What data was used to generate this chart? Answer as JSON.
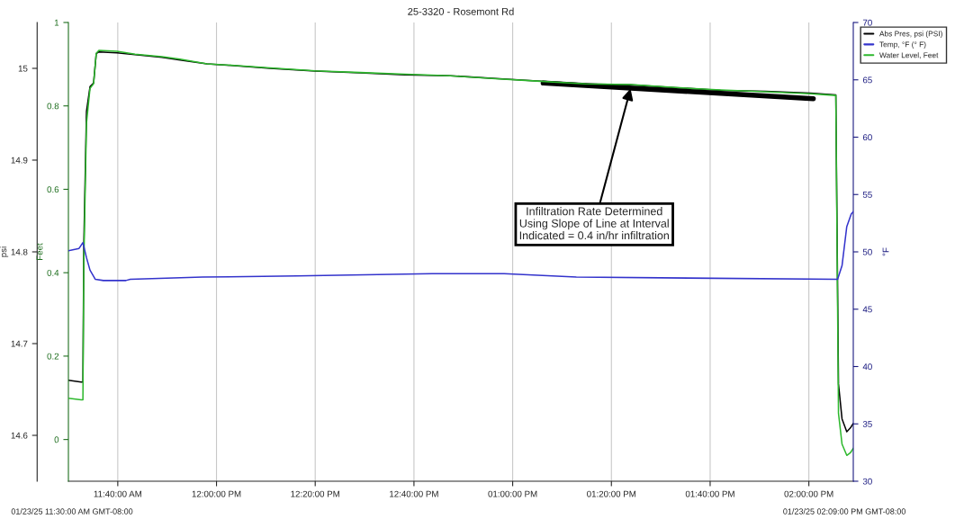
{
  "chart_data": {
    "type": "line",
    "title": "25-3320 - Rosemont Rd",
    "ylabel": "psi",
    "y2label": "Feet",
    "y3label": "°F",
    "xlim": [
      11.5,
      14.15
    ],
    "xticks": [
      {
        "value": 11.6667,
        "label": "11:40:00 AM"
      },
      {
        "value": 12,
        "label": "12:00:00 PM"
      },
      {
        "value": 12.3333,
        "label": "12:20:00 PM"
      },
      {
        "value": 12.6667,
        "label": "12:40:00 PM"
      },
      {
        "value": 13,
        "label": "01:00:00 PM"
      },
      {
        "value": 13.3333,
        "label": "01:20:00 PM"
      },
      {
        "value": 13.6667,
        "label": "01:40:00 PM"
      },
      {
        "value": 14,
        "label": "02:00:00 PM"
      }
    ],
    "ylim": [
      14.55,
      15.05
    ],
    "yticks": [
      14.6,
      14.7,
      14.8,
      14.9,
      15
    ],
    "y2lim": [
      -0.1,
      1.0
    ],
    "y2ticks": [
      0,
      0.2,
      0.4,
      0.6,
      0.8,
      1
    ],
    "y3lim": [
      30,
      70
    ],
    "y3ticks": [
      30,
      35,
      40,
      45,
      50,
      55,
      60,
      65,
      70
    ],
    "grid": "x",
    "legend": "top right",
    "line_style": "solid",
    "marker": "none",
    "series": [
      {
        "name": "Abs Pres, psi (PSI)",
        "color": "#000000",
        "axis": "y",
        "x": [
          11.5,
          11.543,
          11.549,
          11.552,
          11.561,
          11.573,
          11.585,
          11.594,
          11.603,
          11.664,
          11.725,
          11.816,
          11.877,
          11.968,
          12.06,
          12.181,
          12.333,
          12.485,
          12.637,
          12.79,
          12.942,
          13.094,
          13.246,
          13.398,
          13.55,
          13.702,
          13.854,
          14.006,
          14.091,
          14.1,
          14.112,
          14.128,
          14.14,
          14.15
        ],
        "values": [
          14.66,
          14.658,
          14.658,
          14.807,
          14.953,
          14.98,
          14.984,
          15.016,
          15.018,
          15.017,
          15.015,
          15.012,
          15.009,
          15.005,
          15.003,
          15.0,
          14.997,
          14.995,
          14.993,
          14.992,
          14.989,
          14.986,
          14.983,
          14.982,
          14.979,
          14.976,
          14.975,
          14.973,
          14.971,
          14.656,
          14.618,
          14.604,
          14.608,
          14.613
        ]
      },
      {
        "name": "Temp, °F (° F)",
        "color": "#3333cc",
        "axis": "y3",
        "x": [
          11.5,
          11.536,
          11.549,
          11.561,
          11.573,
          11.591,
          11.618,
          11.694,
          11.709,
          11.953,
          12.272,
          12.728,
          12.971,
          13.215,
          14.097,
          14.112,
          14.128,
          14.143,
          14.15
        ],
        "values": [
          50.1,
          50.3,
          50.8,
          49.5,
          48.4,
          47.6,
          47.5,
          47.5,
          47.6,
          47.8,
          47.9,
          48.1,
          48.1,
          47.8,
          47.6,
          48.8,
          52.2,
          53.3,
          53.5
        ]
      },
      {
        "name": "Water Level, Feet",
        "color": "#2db82d",
        "axis": "y2",
        "x": [
          11.5,
          11.543,
          11.549,
          11.552,
          11.561,
          11.573,
          11.585,
          11.594,
          11.603,
          11.664,
          11.725,
          11.816,
          11.877,
          11.968,
          12.06,
          12.181,
          12.333,
          12.485,
          12.637,
          12.79,
          12.942,
          13.094,
          13.246,
          13.398,
          13.55,
          13.702,
          13.854,
          14.006,
          14.091,
          14.1,
          14.112,
          14.128,
          14.14,
          14.15
        ],
        "values": [
          0.099,
          0.095,
          0.095,
          0.421,
          0.758,
          0.842,
          0.853,
          0.926,
          0.933,
          0.931,
          0.924,
          0.918,
          0.912,
          0.901,
          0.897,
          0.891,
          0.884,
          0.88,
          0.876,
          0.872,
          0.865,
          0.859,
          0.853,
          0.851,
          0.844,
          0.838,
          0.834,
          0.829,
          0.825,
          0.063,
          -0.011,
          -0.038,
          -0.032,
          -0.021
        ]
      },
      {
        "type": "line",
        "color": "#000000",
        "axis": "y",
        "x": [
          13.103,
          14.015
        ],
        "values": [
          14.984,
          14.967
        ]
      }
    ],
    "annotations": [
      "01/23/25 11:30:00 AM GMT-08:00",
      "01/23/25 02:09:00 PM GMT-08:00",
      {
        "text": "Infiltration Rate Determined\nUsing Slope of Line at Interval\nIndicated = 0.4 in/hr infiltration",
        "x": 13.398,
        "y": 14.978
      }
    ]
  }
}
